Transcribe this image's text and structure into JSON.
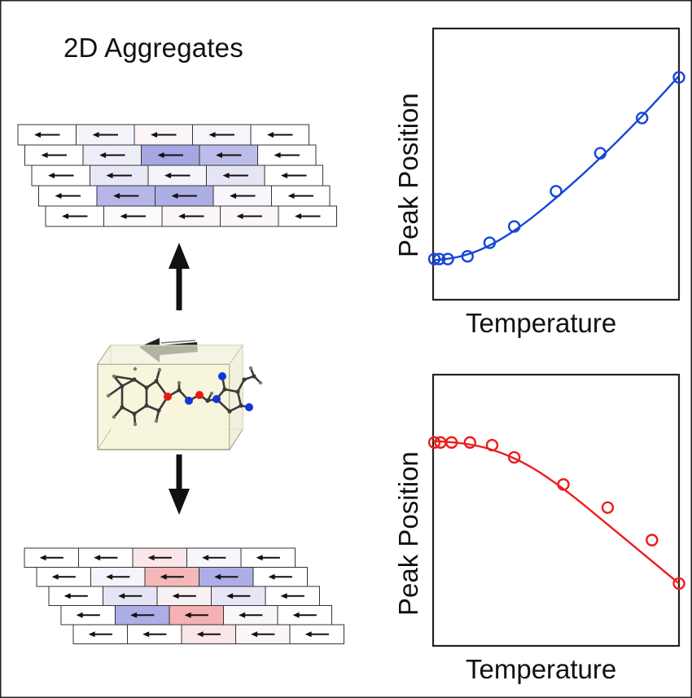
{
  "figure": {
    "title": "2D Aggregates"
  },
  "chart_data": [
    {
      "type": "scatter",
      "xlabel": "Temperature",
      "ylabel": "Peak Position",
      "color": "#1446d8",
      "ticks": "none",
      "grid": false,
      "xlim": [
        0,
        10
      ],
      "ylim": [
        0,
        10
      ],
      "points": {
        "x": [
          0.05,
          0.25,
          0.6,
          1.4,
          2.3,
          3.3,
          5.0,
          6.8,
          8.5,
          10.0
        ],
        "y": [
          1.5,
          1.5,
          1.5,
          1.6,
          2.1,
          2.7,
          4.0,
          5.4,
          6.7,
          8.2
        ]
      },
      "fit": {
        "x": [
          0,
          1,
          2,
          3,
          4,
          5,
          6,
          7,
          8,
          9,
          10
        ],
        "y": [
          1.45,
          1.55,
          1.85,
          2.35,
          3.0,
          3.75,
          4.55,
          5.4,
          6.3,
          7.25,
          8.25
        ]
      }
    },
    {
      "type": "scatter",
      "xlabel": "Temperature",
      "ylabel": "Peak Position",
      "color": "#ee1c1c",
      "ticks": "none",
      "grid": false,
      "xlim": [
        0,
        10
      ],
      "ylim": [
        0,
        10
      ],
      "points": {
        "x": [
          0.05,
          0.3,
          0.75,
          1.5,
          2.4,
          3.3,
          5.3,
          7.1,
          8.9,
          10.0
        ],
        "y": [
          7.5,
          7.5,
          7.5,
          7.5,
          7.4,
          6.95,
          5.95,
          5.1,
          3.9,
          2.3
        ]
      },
      "fit": {
        "x": [
          0,
          1,
          2,
          3,
          4,
          5,
          6,
          7,
          8,
          9,
          10
        ],
        "y": [
          7.55,
          7.5,
          7.35,
          7.05,
          6.6,
          6.0,
          5.3,
          4.55,
          3.8,
          3.05,
          2.3
        ]
      }
    }
  ],
  "aggregates": {
    "top": {
      "row_shades": [
        [
          "#ffffff",
          "#f4f4fb",
          "#fbf5f8",
          "#f5f5fb",
          "#ffffff"
        ],
        [
          "#ffffff",
          "#eeeef9",
          "#a6a6e4",
          "#bcbceb",
          "#ffffff"
        ],
        [
          "#ffffff",
          "#e8e8f7",
          "#f4f4fb",
          "#e5e5f6",
          "#ffffff"
        ],
        [
          "#ffffff",
          "#b6b6e9",
          "#aeaee6",
          "#f6f6fb",
          "#ffffff"
        ],
        [
          "#ffffff",
          "#fbfbfe",
          "#fcf5f7",
          "#fbf7f9",
          "#ffffff"
        ]
      ]
    },
    "bottom": {
      "row_shades": [
        [
          "#ffffff",
          "#ffffff",
          "#fbe7e9",
          "#f6f6fb",
          "#ffffff"
        ],
        [
          "#ffffff",
          "#f4f4fb",
          "#f5b8b9",
          "#aeaee6",
          "#ffffff"
        ],
        [
          "#ffffff",
          "#e4e4f6",
          "#f8f1f3",
          "#e6e6f6",
          "#ffffff"
        ],
        [
          "#ffffff",
          "#aeaee6",
          "#f5b1b3",
          "#f8f6f9",
          "#ffffff"
        ],
        [
          "#ffffff",
          "#ffffff",
          "#f9e6e7",
          "#fbf7f9",
          "#ffffff"
        ]
      ]
    }
  },
  "molecule_box": {
    "fill": "#f6f4d8",
    "atom_colors": {
      "carbon": "#3a3a3a",
      "oxygen": "#e81717",
      "nitrogen": "#1536d6",
      "hydrogen": "#7a7a7a"
    }
  }
}
